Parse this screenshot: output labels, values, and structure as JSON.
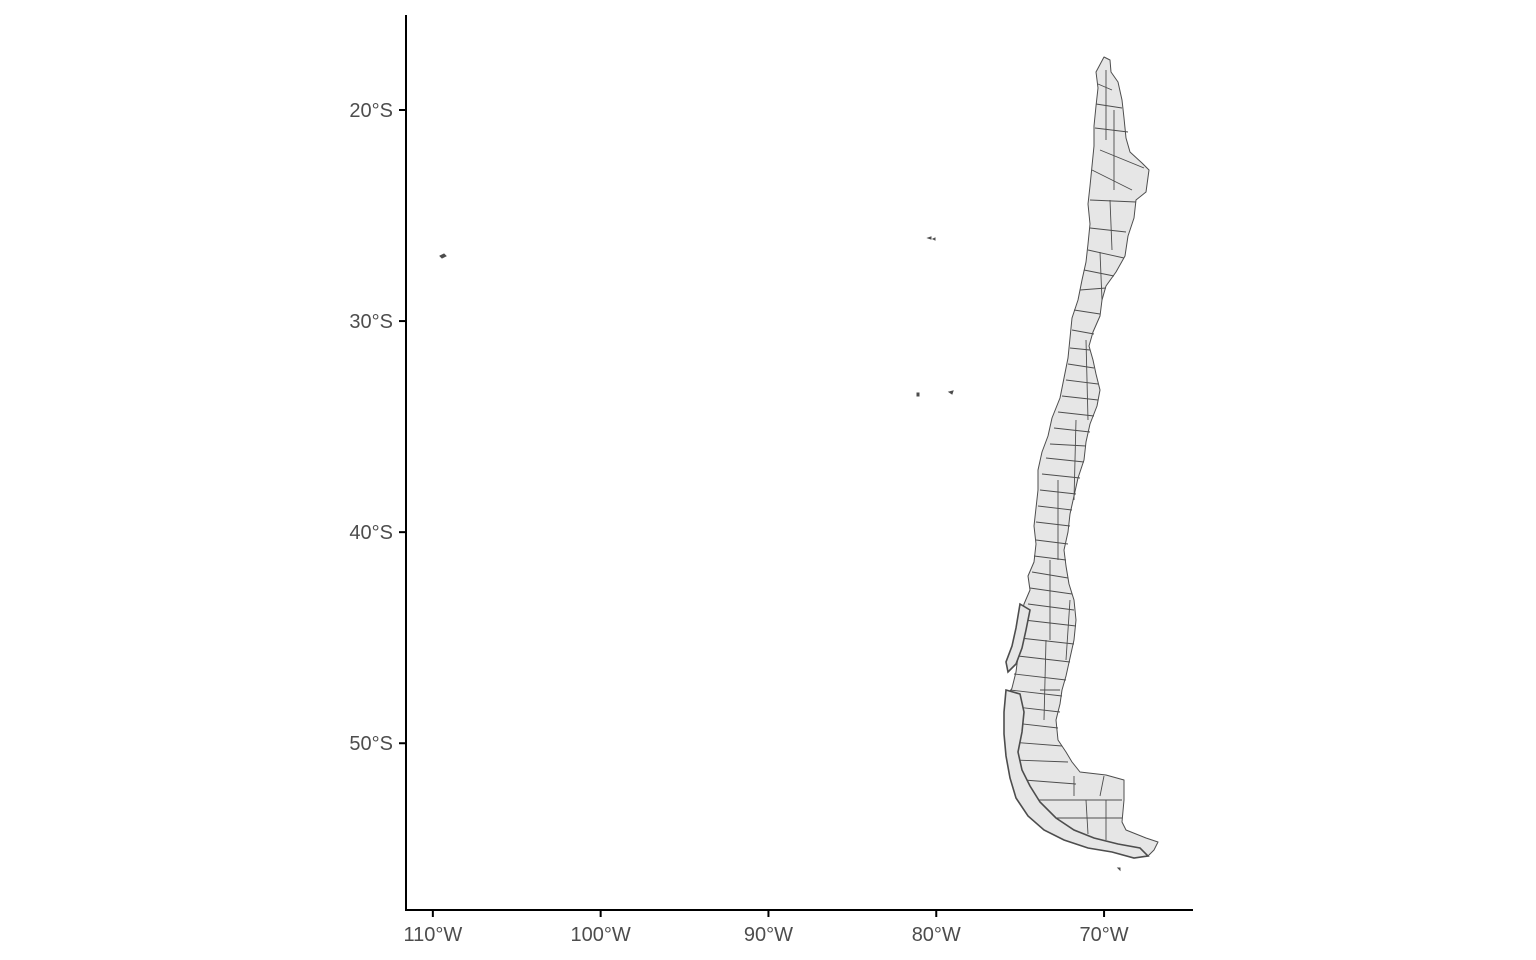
{
  "map": {
    "type": "choropleth-outline",
    "country_fill": "#e6e6e6",
    "border_color": "#4d4d4d",
    "axis_color": "#000000",
    "tick_label_color": "#4d4d4d",
    "x_axis": {
      "range_lon": [
        -111.6,
        -64.7
      ],
      "ticks": [
        {
          "lon": -110,
          "label": "110°W"
        },
        {
          "lon": -100,
          "label": "100°W"
        },
        {
          "lon": -90,
          "label": "90°W"
        },
        {
          "lon": -80,
          "label": "80°W"
        },
        {
          "lon": -70,
          "label": "70°W"
        }
      ]
    },
    "y_axis": {
      "range_lat": [
        -57.9,
        -15.5
      ],
      "ticks": [
        {
          "lat": -20,
          "label": "20°S"
        },
        {
          "lat": -30,
          "label": "30°S"
        },
        {
          "lat": -40,
          "label": "40°S"
        },
        {
          "lat": -50,
          "label": "50°S"
        }
      ]
    },
    "features": [
      {
        "name": "Chile mainland",
        "kind": "communes"
      },
      {
        "name": "Easter Island",
        "kind": "island",
        "lon": -109.3,
        "lat": -27.1
      },
      {
        "name": "San Félix / San Ambrosio",
        "kind": "island",
        "lon": -80.1,
        "lat": -26.3
      },
      {
        "name": "Juan Fernández Islands",
        "kind": "island",
        "lon": -79.8,
        "lat": -33.6
      }
    ]
  }
}
